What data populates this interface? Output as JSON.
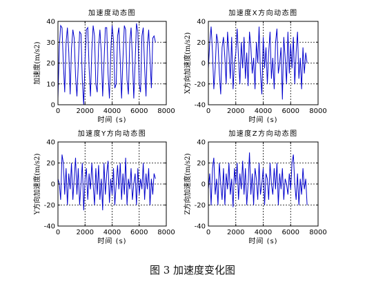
{
  "figure": {
    "caption": "图 3  加速度变化图"
  },
  "chart_data": [
    {
      "type": "line",
      "title": "加速度动态图",
      "xlabel": "时间 (s)",
      "ylabel": "加速度(m/s2)",
      "xlim": [
        0,
        8000
      ],
      "ylim": [
        0,
        40
      ],
      "xticks": [
        0,
        2000,
        4000,
        6000,
        8000
      ],
      "yticks": [
        0,
        10,
        20,
        30,
        40
      ],
      "grid": true,
      "color": "#0000cc",
      "x": [
        0,
        100,
        200,
        300,
        400,
        500,
        600,
        700,
        800,
        900,
        1000,
        1100,
        1200,
        1300,
        1400,
        1500,
        1600,
        1700,
        1800,
        1900,
        2000,
        2100,
        2200,
        2300,
        2400,
        2500,
        2600,
        2700,
        2800,
        2900,
        3000,
        3100,
        3200,
        3300,
        3400,
        3500,
        3600,
        3700,
        3800,
        3900,
        4000,
        4100,
        4200,
        4300,
        4400,
        4500,
        4600,
        4700,
        4800,
        4900,
        5000,
        5100,
        5200,
        5300,
        5400,
        5500,
        5600,
        5700,
        5800,
        5900,
        6000,
        6100,
        6200,
        6300,
        6400,
        6500,
        6600,
        6700,
        6800,
        6900,
        7000,
        7100,
        7200
      ],
      "y": [
        3,
        28,
        38,
        37,
        20,
        6,
        30,
        37,
        25,
        5,
        27,
        36,
        32,
        14,
        4,
        19,
        35,
        34,
        12,
        0,
        22,
        36,
        37,
        18,
        4,
        26,
        38,
        33,
        10,
        6,
        28,
        36,
        25,
        4,
        20,
        37,
        37,
        15,
        3,
        25,
        38,
        31,
        8,
        10,
        33,
        37,
        21,
        3,
        22,
        38,
        36,
        12,
        5,
        30,
        37,
        22,
        3,
        21,
        39,
        35,
        10,
        6,
        33,
        37,
        18,
        4,
        28,
        36,
        22,
        8,
        32,
        33,
        30
      ]
    },
    {
      "type": "line",
      "title": "加速度X方向动态图",
      "xlabel": "时间 (s)",
      "ylabel": "X方向加速度(m/s2)",
      "xlim": [
        0,
        8000
      ],
      "ylim": [
        -40,
        40
      ],
      "xticks": [
        0,
        2000,
        4000,
        6000,
        8000
      ],
      "yticks": [
        -40,
        -20,
        0,
        20,
        40
      ],
      "grid": true,
      "color": "#0000cc",
      "x": [
        0,
        100,
        200,
        300,
        400,
        500,
        600,
        700,
        800,
        900,
        1000,
        1100,
        1200,
        1300,
        1400,
        1500,
        1600,
        1700,
        1800,
        1900,
        2000,
        2100,
        2200,
        2300,
        2400,
        2500,
        2600,
        2700,
        2800,
        2900,
        3000,
        3100,
        3200,
        3300,
        3400,
        3500,
        3600,
        3700,
        3800,
        3900,
        4000,
        4100,
        4200,
        4300,
        4400,
        4500,
        4600,
        4700,
        4800,
        4900,
        5000,
        5100,
        5200,
        5300,
        5400,
        5500,
        5600,
        5700,
        5800,
        5900,
        6000,
        6100,
        6200,
        6300,
        6400,
        6500,
        6600,
        6700,
        6800,
        6900,
        7000,
        7100,
        7200
      ],
      "y": [
        -5,
        20,
        35,
        10,
        -25,
        -5,
        28,
        20,
        -10,
        -30,
        15,
        25,
        5,
        -20,
        30,
        10,
        -15,
        25,
        -25,
        0,
        10,
        33,
        5,
        -20,
        20,
        -5,
        25,
        -15,
        10,
        -22,
        30,
        15,
        -10,
        5,
        -25,
        20,
        0,
        35,
        -10,
        -30,
        25,
        -5,
        15,
        -20,
        10,
        30,
        -15,
        5,
        -25,
        20,
        33,
        -10,
        0,
        15,
        -35,
        25,
        5,
        -20,
        30,
        -10,
        18,
        -5,
        25,
        -20,
        10,
        30,
        -15,
        5,
        -25,
        15,
        -10,
        10,
        0
      ]
    },
    {
      "type": "line",
      "title": "加速度Y方向动态图",
      "xlabel": "时间 (s)",
      "ylabel": "Y方向加速度(m/s2)",
      "xlim": [
        0,
        8000
      ],
      "ylim": [
        -40,
        40
      ],
      "xticks": [
        0,
        2000,
        4000,
        6000,
        8000
      ],
      "yticks": [
        -40,
        -20,
        0,
        20,
        40
      ],
      "grid": true,
      "color": "#0000cc",
      "x": [
        0,
        100,
        200,
        300,
        400,
        500,
        600,
        700,
        800,
        900,
        1000,
        1100,
        1200,
        1300,
        1400,
        1500,
        1600,
        1700,
        1800,
        1900,
        2000,
        2100,
        2200,
        2300,
        2400,
        2500,
        2600,
        2700,
        2800,
        2900,
        3000,
        3100,
        3200,
        3300,
        3400,
        3500,
        3600,
        3700,
        3800,
        3900,
        4000,
        4100,
        4200,
        4300,
        4400,
        4500,
        4600,
        4700,
        4800,
        4900,
        5000,
        5100,
        5200,
        5300,
        5400,
        5500,
        5600,
        5700,
        5800,
        5900,
        6000,
        6100,
        6200,
        6300,
        6400,
        6500,
        6600,
        6700,
        6800,
        6900,
        7000,
        7100,
        7200
      ],
      "y": [
        5,
        0,
        -15,
        28,
        20,
        -10,
        15,
        -20,
        10,
        -5,
        20,
        -15,
        5,
        25,
        -10,
        15,
        -20,
        0,
        20,
        -25,
        5,
        15,
        -15,
        10,
        -5,
        20,
        0,
        -20,
        15,
        -10,
        18,
        -15,
        5,
        -25,
        20,
        -10,
        10,
        22,
        -18,
        5,
        -10,
        15,
        -20,
        0,
        18,
        -5,
        20,
        -15,
        10,
        -10,
        25,
        -20,
        5,
        -5,
        15,
        -15,
        0,
        10,
        -20,
        15,
        -10,
        5,
        -5,
        20,
        -15,
        10,
        -5,
        15,
        -20,
        5,
        -10,
        10,
        5
      ]
    },
    {
      "type": "line",
      "title": "加速度Z方向动态图",
      "xlabel": "时间 (s)",
      "ylabel": "Z方向加速度(m/s2)",
      "xlim": [
        0,
        8000
      ],
      "ylim": [
        -40,
        40
      ],
      "xticks": [
        0,
        2000,
        4000,
        6000,
        8000
      ],
      "yticks": [
        -40,
        -20,
        0,
        20,
        40
      ],
      "grid": true,
      "color": "#0000cc",
      "x": [
        0,
        100,
        200,
        300,
        400,
        500,
        600,
        700,
        800,
        900,
        1000,
        1100,
        1200,
        1300,
        1400,
        1500,
        1600,
        1700,
        1800,
        1900,
        2000,
        2100,
        2200,
        2300,
        2400,
        2500,
        2600,
        2700,
        2800,
        2900,
        3000,
        3100,
        3200,
        3300,
        3400,
        3500,
        3600,
        3700,
        3800,
        3900,
        4000,
        4100,
        4200,
        4300,
        4400,
        4500,
        4600,
        4700,
        4800,
        4900,
        5000,
        5100,
        5200,
        5300,
        5400,
        5500,
        5600,
        5700,
        5800,
        5900,
        6000,
        6100,
        6200,
        6300,
        6400,
        6500,
        6600,
        6700,
        6800,
        6900,
        7000,
        7100,
        7200
      ],
      "y": [
        -5,
        10,
        -20,
        15,
        25,
        -10,
        5,
        -20,
        20,
        0,
        -15,
        15,
        -20,
        10,
        -5,
        20,
        -10,
        5,
        -22,
        15,
        0,
        20,
        -15,
        10,
        -5,
        22,
        -10,
        15,
        -20,
        0,
        30,
        -10,
        10,
        -20,
        15,
        5,
        -15,
        20,
        -10,
        0,
        15,
        -20,
        10,
        5,
        -15,
        20,
        0,
        -10,
        15,
        -5,
        20,
        -20,
        10,
        -5,
        15,
        -15,
        5,
        0,
        -10,
        10,
        -5,
        20,
        28,
        0,
        -15,
        10,
        -20,
        5,
        -10,
        15,
        -5,
        5,
        -20
      ]
    }
  ]
}
